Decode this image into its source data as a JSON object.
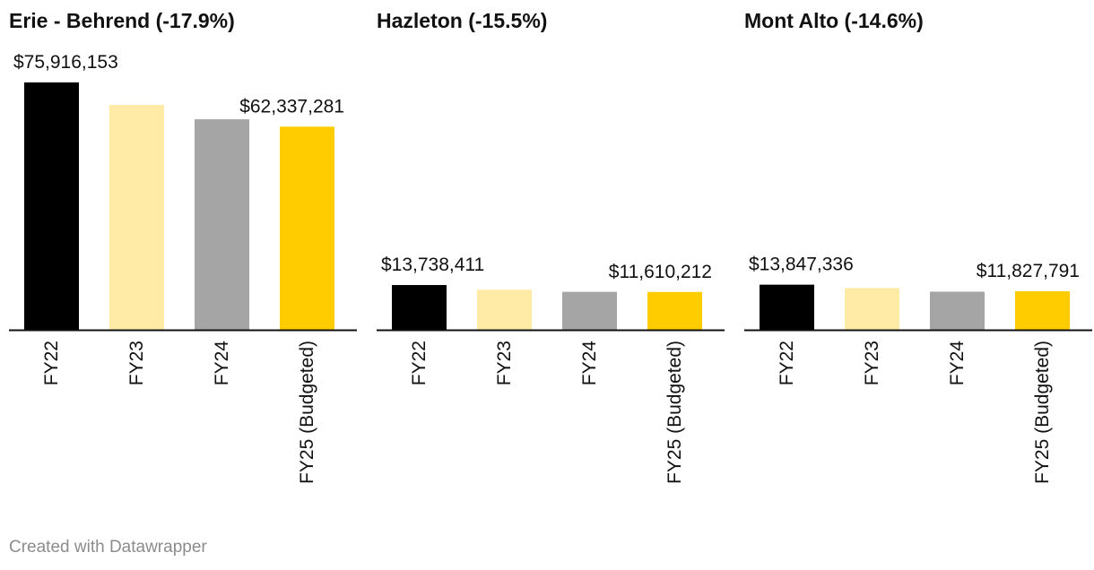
{
  "chart_data": [
    {
      "type": "bar",
      "title": "Erie - Behrend (-17.9%)",
      "categories": [
        "FY22",
        "FY23",
        "FY24",
        "FY25 (Budgeted)"
      ],
      "values": [
        75916153,
        69000000,
        64600000,
        62337281
      ],
      "labels": [
        "$75,916,153",
        "",
        "",
        "$62,337,281"
      ],
      "colors": [
        "#000000",
        "#ffeba6",
        "#a5a5a5",
        "#ffcc00"
      ],
      "ylim": [
        0,
        77000000
      ],
      "xlabel": "",
      "ylabel": ""
    },
    {
      "type": "bar",
      "title": "Hazleton (-15.5%)",
      "categories": [
        "FY22",
        "FY23",
        "FY24",
        "FY25 (Budgeted)"
      ],
      "values": [
        13738411,
        12300000,
        11650000,
        11610212
      ],
      "labels": [
        "$13,738,411",
        "",
        "",
        "$11,610,212"
      ],
      "colors": [
        "#000000",
        "#ffeba6",
        "#a5a5a5",
        "#ffcc00"
      ],
      "ylim": [
        0,
        77000000
      ],
      "xlabel": "",
      "ylabel": ""
    },
    {
      "type": "bar",
      "title": "Mont Alto (-14.6%)",
      "categories": [
        "FY22",
        "FY23",
        "FY24",
        "FY25 (Budgeted)"
      ],
      "values": [
        13847336,
        12800000,
        11700000,
        11827791
      ],
      "labels": [
        "$13,847,336",
        "",
        "",
        "$11,827,791"
      ],
      "colors": [
        "#000000",
        "#ffeba6",
        "#a5a5a5",
        "#ffcc00"
      ],
      "ylim": [
        0,
        77000000
      ],
      "xlabel": "",
      "ylabel": ""
    }
  ],
  "footer": {
    "credit": "Created with Datawrapper"
  }
}
